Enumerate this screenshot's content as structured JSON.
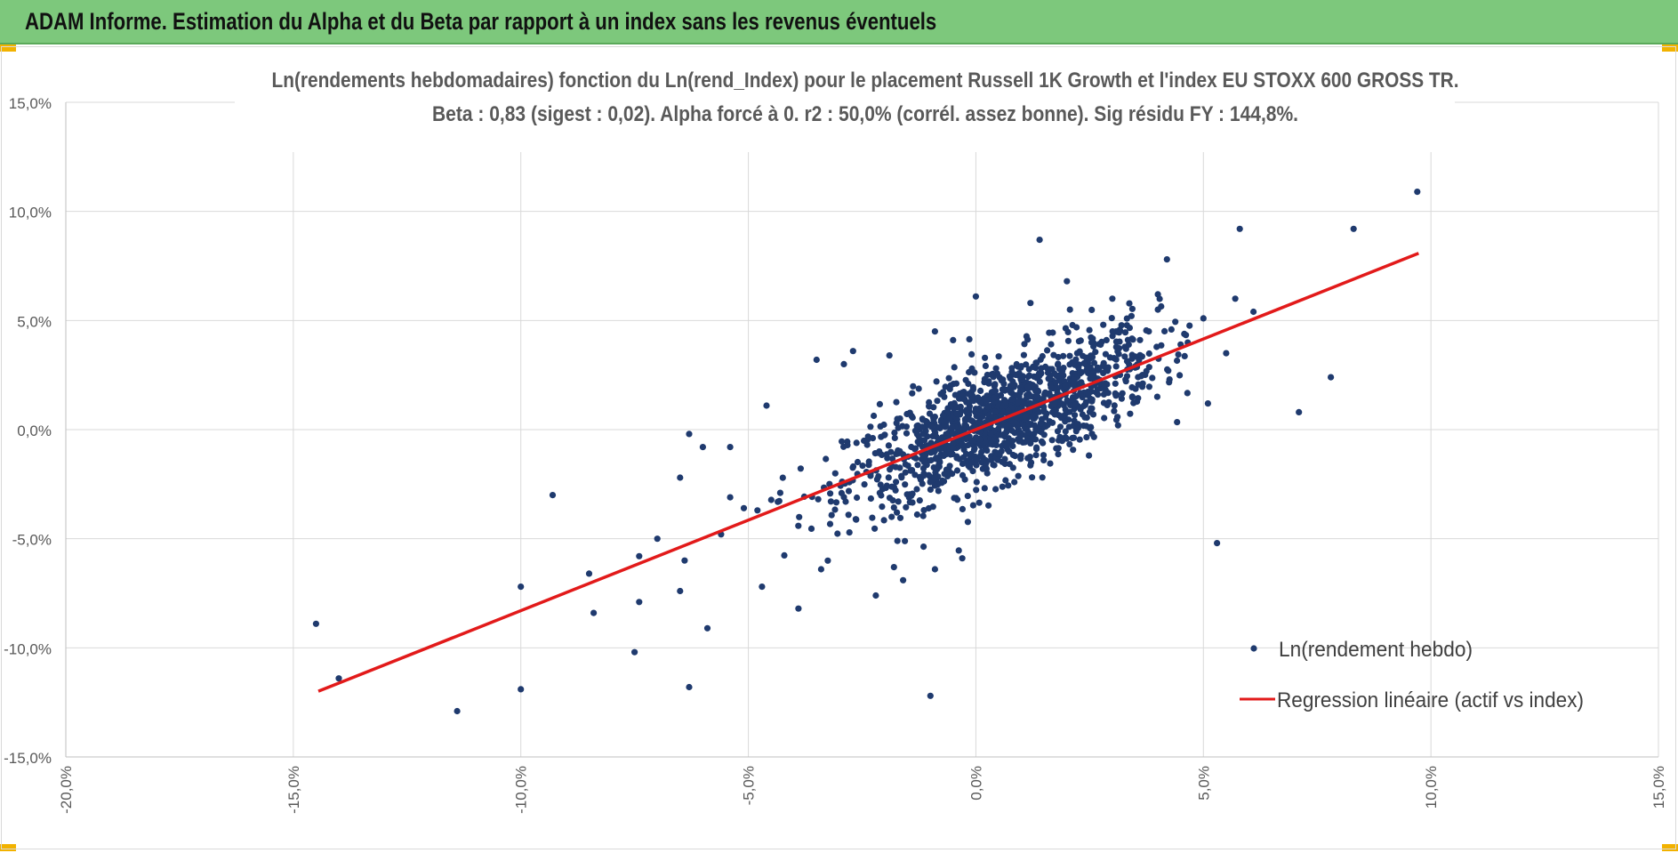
{
  "header": {
    "title": "ADAM Informe. Estimation du Alpha et du Beta par rapport à un index sans les revenus éventuels"
  },
  "colors": {
    "header_bg": "#7dc87c",
    "accent_corner": "#f2b200",
    "points": "#1f3a6e",
    "regression": "#e21a1a",
    "grid": "#d9d9d9"
  },
  "chart_data": {
    "type": "scatter",
    "title_line1": "Ln(rendements hebdomadaires) fonction du Ln(rend_Index) pour le placement Russell 1K Growth et l'index EU STOXX 600 GROSS TR.",
    "title_line2": "Beta : 0,83 (sigest : 0,02). Alpha forcé à 0. r2 : 50,0% (corrél. assez bonne). Sig résidu FY : 144,8%.",
    "xlim": [
      -0.2,
      0.15
    ],
    "ylim": [
      -0.15,
      0.15
    ],
    "x_ticks": [
      -0.2,
      -0.15,
      -0.1,
      -0.05,
      0.0,
      0.05,
      0.1,
      0.15
    ],
    "x_tick_labels": [
      "-20,0%",
      "-15,0%",
      "-10,0%",
      "-5,0%",
      "0,0%",
      "5,0%",
      "10,0%",
      "15,0%"
    ],
    "y_ticks": [
      0.15,
      0.1,
      0.05,
      0.0,
      -0.05,
      -0.1,
      -0.15
    ],
    "y_tick_labels": [
      "15,0%",
      "10,0%",
      "5,0%",
      "0,0%",
      "-5,0%",
      "-10,0%",
      "-15,0%"
    ],
    "grid": true,
    "legend_position": "bottom-right",
    "series": [
      {
        "name": "Ln(rendement hebdo)",
        "kind": "points",
        "points": [
          [
            -0.145,
            -0.089
          ],
          [
            -0.14,
            -0.114
          ],
          [
            -0.114,
            -0.129
          ],
          [
            -0.1,
            -0.119
          ],
          [
            -0.1,
            -0.072
          ],
          [
            -0.093,
            -0.03
          ],
          [
            -0.085,
            -0.066
          ],
          [
            -0.084,
            -0.084
          ],
          [
            -0.075,
            -0.102
          ],
          [
            -0.074,
            -0.079
          ],
          [
            -0.074,
            -0.058
          ],
          [
            -0.07,
            -0.05
          ],
          [
            -0.065,
            -0.074
          ],
          [
            -0.065,
            -0.022
          ],
          [
            -0.064,
            -0.06
          ],
          [
            -0.063,
            -0.002
          ],
          [
            -0.063,
            -0.118
          ],
          [
            -0.06,
            -0.008
          ],
          [
            -0.059,
            -0.091
          ],
          [
            -0.056,
            -0.048
          ],
          [
            -0.054,
            -0.031
          ],
          [
            -0.054,
            -0.008
          ],
          [
            -0.051,
            -0.036
          ],
          [
            -0.048,
            -0.037
          ],
          [
            -0.047,
            -0.072
          ],
          [
            -0.046,
            0.011
          ],
          [
            -0.043,
            -0.029
          ],
          [
            -0.039,
            -0.082
          ],
          [
            -0.035,
            0.032
          ],
          [
            -0.034,
            -0.064
          ],
          [
            -0.029,
            0.03
          ],
          [
            -0.027,
            0.036
          ],
          [
            -0.022,
            -0.076
          ],
          [
            -0.019,
            0.034
          ],
          [
            -0.018,
            -0.063
          ],
          [
            -0.016,
            -0.069
          ],
          [
            -0.01,
            -0.122
          ],
          [
            -0.009,
            0.045
          ],
          [
            -0.009,
            -0.064
          ],
          [
            -0.005,
            0.041
          ],
          [
            -0.003,
            -0.059
          ],
          [
            0.0,
            0.061
          ],
          [
            0.014,
            0.087
          ],
          [
            0.02,
            0.068
          ],
          [
            0.03,
            0.06
          ],
          [
            0.033,
            0.037
          ],
          [
            0.04,
            0.062
          ],
          [
            0.042,
            0.078
          ],
          [
            0.045,
            0.039
          ],
          [
            0.05,
            0.051
          ],
          [
            0.051,
            0.012
          ],
          [
            0.053,
            -0.052
          ],
          [
            0.055,
            0.035
          ],
          [
            0.057,
            0.06
          ],
          [
            0.058,
            0.092
          ],
          [
            0.061,
            0.054
          ],
          [
            0.071,
            0.008
          ],
          [
            0.078,
            0.024
          ],
          [
            0.083,
            0.092
          ],
          [
            0.097,
            0.109
          ],
          [
            0.04,
            0.055
          ],
          [
            0.038,
            0.045
          ],
          [
            0.028,
            0.048
          ],
          [
            0.012,
            0.058
          ]
        ]
      },
      {
        "name": "Regression linéaire (actif vs index)",
        "kind": "line",
        "points": [
          [
            -0.1445,
            -0.1199
          ],
          [
            0.0973,
            0.0808
          ]
        ]
      }
    ]
  }
}
